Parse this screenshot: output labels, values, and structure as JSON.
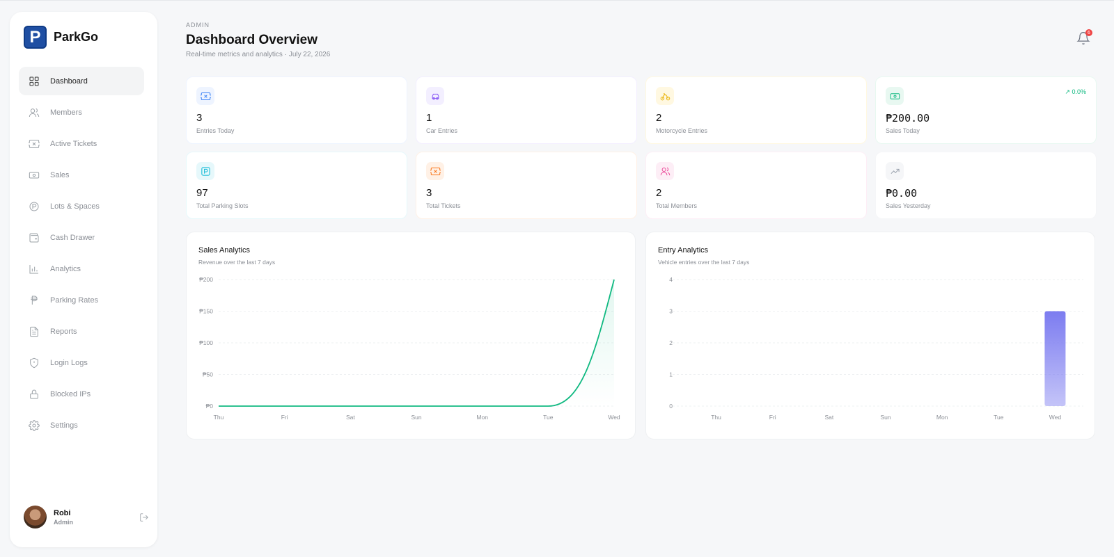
{
  "sidebar": {
    "brand": {
      "logo_letter": "P",
      "name": "ParkGo"
    },
    "items": [
      {
        "label": "Dashboard",
        "icon": "grid-icon",
        "active": true
      },
      {
        "label": "Members",
        "icon": "users-icon"
      },
      {
        "label": "Active Tickets",
        "icon": "ticket-icon"
      },
      {
        "label": "Sales",
        "icon": "banknote-icon"
      },
      {
        "label": "Lots & Spaces",
        "icon": "parking-circle-icon"
      },
      {
        "label": "Cash Drawer",
        "icon": "wallet-icon"
      },
      {
        "label": "Analytics",
        "icon": "bar-chart-icon"
      },
      {
        "label": "Parking Rates",
        "icon": "peso-icon"
      },
      {
        "label": "Reports",
        "icon": "file-text-icon"
      },
      {
        "label": "Login Logs",
        "icon": "shield-icon"
      },
      {
        "label": "Blocked IPs",
        "icon": "lock-icon"
      },
      {
        "label": "Settings",
        "icon": "gear-icon"
      }
    ],
    "user": {
      "name": "Robi",
      "role": "Admin"
    }
  },
  "header": {
    "crumb": "ADMIN",
    "title": "Dashboard Overview",
    "subtitle": "Real-time metrics and analytics · July 22, 2026",
    "notification_count": "6"
  },
  "stats": [
    {
      "value": "3",
      "label": "Entries Today",
      "icon": "ticket-icon",
      "color": "#3b82f6",
      "bg": "#eef4ff"
    },
    {
      "value": "1",
      "label": "Car Entries",
      "icon": "car-icon",
      "color": "#8b5cf6",
      "bg": "#f3efff"
    },
    {
      "value": "2",
      "label": "Motorcycle Entries",
      "icon": "bike-icon",
      "color": "#eab308",
      "bg": "#fff8e1"
    },
    {
      "value": "₱200.00",
      "label": "Sales Today",
      "icon": "banknote-icon",
      "color": "#10b981",
      "bg": "#e8f8f1",
      "trend": "0.0%"
    },
    {
      "value": "97",
      "label": "Total Parking Slots",
      "icon": "parking-icon",
      "color": "#06b6d4",
      "bg": "#e6f8fb"
    },
    {
      "value": "3",
      "label": "Total Tickets",
      "icon": "ticket-icon",
      "color": "#f97316",
      "bg": "#fff1e6"
    },
    {
      "value": "2",
      "label": "Total Members",
      "icon": "users-icon",
      "color": "#ec4899",
      "bg": "#fdeef6"
    },
    {
      "value": "₱0.00",
      "label": "Sales Yesterday",
      "icon": "trending-up-icon",
      "color": "#9ca3af",
      "bg": "#f5f6f8"
    }
  ],
  "charts": {
    "sales": {
      "title": "Sales Analytics",
      "subtitle": "Revenue over the last 7 days"
    },
    "entry": {
      "title": "Entry Analytics",
      "subtitle": "Vehicle entries over the last 7 days"
    }
  },
  "chart_data": [
    {
      "type": "area",
      "title": "Sales Analytics",
      "categories": [
        "Thu",
        "Fri",
        "Sat",
        "Sun",
        "Mon",
        "Tue",
        "Wed"
      ],
      "values": [
        0,
        0,
        0,
        0,
        0,
        0,
        200
      ],
      "yticks": [
        "₱0",
        "₱50",
        "₱100",
        "₱150",
        "₱200"
      ],
      "ylim": [
        0,
        200
      ],
      "color": "#10b981",
      "grid": true
    },
    {
      "type": "bar",
      "title": "Entry Analytics",
      "categories": [
        "Thu",
        "Fri",
        "Sat",
        "Sun",
        "Mon",
        "Tue",
        "Wed"
      ],
      "values": [
        0,
        0,
        0,
        0,
        0,
        0,
        3
      ],
      "yticks": [
        "0",
        "1",
        "2",
        "3",
        "4"
      ],
      "ylim": [
        0,
        4
      ],
      "color": "#7c7cf0",
      "grid": true
    }
  ]
}
